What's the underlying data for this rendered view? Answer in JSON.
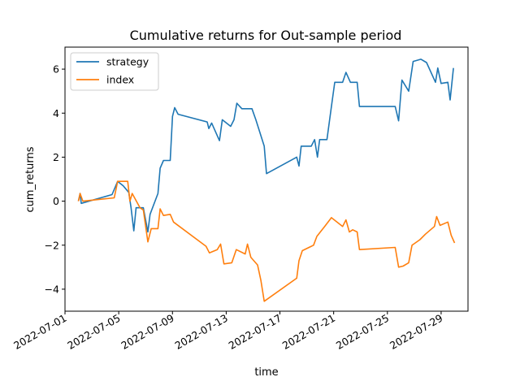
{
  "chart_data": {
    "type": "line",
    "title": "Cumulative returns for Out-sample period",
    "xlabel": "time",
    "ylabel": "cum_returns",
    "xlim": [
      "2022-07-01",
      "2022-07-31"
    ],
    "ylim": [
      -5,
      7
    ],
    "x_ticks": [
      "2022-07-01",
      "2022-07-05",
      "2022-07-09",
      "2022-07-13",
      "2022-07-17",
      "2022-07-21",
      "2022-07-25",
      "2022-07-29"
    ],
    "y_ticks": [
      -4,
      -2,
      0,
      2,
      4,
      6
    ],
    "legend_position": "upper-left",
    "grid": false,
    "series": [
      {
        "name": "strategy",
        "color": "#1f77b4",
        "points": [
          [
            "2022-07-02 00:00",
            0.0
          ],
          [
            "2022-07-02 03:00",
            0.35
          ],
          [
            "2022-07-02 05:00",
            -0.1
          ],
          [
            "2022-07-04 12:00",
            0.3
          ],
          [
            "2022-07-04 22:00",
            0.9
          ],
          [
            "2022-07-05 08:00",
            0.7
          ],
          [
            "2022-07-05 18:00",
            0.4
          ],
          [
            "2022-07-05 22:00",
            -0.3
          ],
          [
            "2022-07-06 03:00",
            -1.35
          ],
          [
            "2022-07-06 07:00",
            -0.3
          ],
          [
            "2022-07-06 20:00",
            -0.3
          ],
          [
            "2022-07-07 04:00",
            -1.4
          ],
          [
            "2022-07-07 08:00",
            -0.6
          ],
          [
            "2022-07-07 22:00",
            0.35
          ],
          [
            "2022-07-08 02:00",
            1.5
          ],
          [
            "2022-07-08 08:00",
            1.85
          ],
          [
            "2022-07-08 20:00",
            1.85
          ],
          [
            "2022-07-09 00:00",
            3.85
          ],
          [
            "2022-07-09 04:00",
            4.25
          ],
          [
            "2022-07-09 10:00",
            3.95
          ],
          [
            "2022-07-11 14:00",
            3.6
          ],
          [
            "2022-07-11 17:00",
            3.3
          ],
          [
            "2022-07-11 22:00",
            3.55
          ],
          [
            "2022-07-12 12:00",
            2.75
          ],
          [
            "2022-07-12 17:00",
            3.7
          ],
          [
            "2022-07-13 08:00",
            3.4
          ],
          [
            "2022-07-13 14:00",
            3.7
          ],
          [
            "2022-07-13 19:00",
            4.45
          ],
          [
            "2022-07-14 04:00",
            4.2
          ],
          [
            "2022-07-14 22:00",
            4.2
          ],
          [
            "2022-07-15 05:00",
            3.7
          ],
          [
            "2022-07-15 20:00",
            2.5
          ],
          [
            "2022-07-16 00:00",
            1.25
          ],
          [
            "2022-07-18 06:00",
            2.0
          ],
          [
            "2022-07-18 10:00",
            1.6
          ],
          [
            "2022-07-18 14:00",
            2.5
          ],
          [
            "2022-07-19 08:00",
            2.5
          ],
          [
            "2022-07-19 14:00",
            2.8
          ],
          [
            "2022-07-19 19:00",
            2.0
          ],
          [
            "2022-07-19 23:00",
            2.8
          ],
          [
            "2022-07-20 12:00",
            2.8
          ],
          [
            "2022-07-20 20:00",
            4.3
          ],
          [
            "2022-07-21 02:00",
            5.4
          ],
          [
            "2022-07-21 16:00",
            5.4
          ],
          [
            "2022-07-21 22:00",
            5.85
          ],
          [
            "2022-07-22 06:00",
            5.4
          ],
          [
            "2022-07-22 18:00",
            5.4
          ],
          [
            "2022-07-22 22:00",
            4.3
          ],
          [
            "2022-07-25 14:00",
            4.3
          ],
          [
            "2022-07-25 20:00",
            3.65
          ],
          [
            "2022-07-26 02:00",
            5.5
          ],
          [
            "2022-07-26 14:00",
            5.0
          ],
          [
            "2022-07-26 22:00",
            6.35
          ],
          [
            "2022-07-27 12:00",
            6.45
          ],
          [
            "2022-07-27 22:00",
            6.3
          ],
          [
            "2022-07-28 14:00",
            5.4
          ],
          [
            "2022-07-28 18:00",
            6.05
          ],
          [
            "2022-07-29 00:00",
            5.35
          ],
          [
            "2022-07-29 12:00",
            5.4
          ],
          [
            "2022-07-29 16:00",
            4.6
          ],
          [
            "2022-07-29 22:00",
            6.05
          ]
        ]
      },
      {
        "name": "index",
        "color": "#ff7f0e",
        "points": [
          [
            "2022-07-02 00:00",
            0.0
          ],
          [
            "2022-07-02 03:00",
            0.35
          ],
          [
            "2022-07-02 08:00",
            0.0
          ],
          [
            "2022-07-04 16:00",
            0.15
          ],
          [
            "2022-07-04 22:00",
            0.9
          ],
          [
            "2022-07-05 16:00",
            0.9
          ],
          [
            "2022-07-05 20:00",
            0.0
          ],
          [
            "2022-07-06 00:00",
            0.35
          ],
          [
            "2022-07-06 14:00",
            -0.3
          ],
          [
            "2022-07-06 20:00",
            -0.4
          ],
          [
            "2022-07-07 04:00",
            -1.85
          ],
          [
            "2022-07-07 10:00",
            -1.25
          ],
          [
            "2022-07-07 22:00",
            -1.25
          ],
          [
            "2022-07-08 02:00",
            -0.35
          ],
          [
            "2022-07-08 08:00",
            -0.65
          ],
          [
            "2022-07-08 20:00",
            -0.6
          ],
          [
            "2022-07-09 02:00",
            -0.95
          ],
          [
            "2022-07-11 12:00",
            -2.05
          ],
          [
            "2022-07-11 18:00",
            -2.35
          ],
          [
            "2022-07-12 08:00",
            -2.2
          ],
          [
            "2022-07-12 14:00",
            -1.95
          ],
          [
            "2022-07-12 20:00",
            -2.85
          ],
          [
            "2022-07-13 10:00",
            -2.8
          ],
          [
            "2022-07-13 18:00",
            -2.2
          ],
          [
            "2022-07-14 10:00",
            -2.4
          ],
          [
            "2022-07-14 14:00",
            -1.95
          ],
          [
            "2022-07-14 20:00",
            -2.55
          ],
          [
            "2022-07-15 08:00",
            -2.9
          ],
          [
            "2022-07-15 14:00",
            -3.6
          ],
          [
            "2022-07-15 20:00",
            -4.55
          ],
          [
            "2022-07-18 06:00",
            -3.5
          ],
          [
            "2022-07-18 10:00",
            -2.7
          ],
          [
            "2022-07-18 16:00",
            -2.25
          ],
          [
            "2022-07-19 12:00",
            -2.0
          ],
          [
            "2022-07-19 18:00",
            -1.6
          ],
          [
            "2022-07-20 08:00",
            -1.15
          ],
          [
            "2022-07-20 20:00",
            -0.75
          ],
          [
            "2022-07-21 16:00",
            -1.15
          ],
          [
            "2022-07-21 22:00",
            -0.85
          ],
          [
            "2022-07-22 04:00",
            -1.4
          ],
          [
            "2022-07-22 10:00",
            -1.3
          ],
          [
            "2022-07-22 18:00",
            -1.4
          ],
          [
            "2022-07-22 22:00",
            -2.2
          ],
          [
            "2022-07-25 14:00",
            -2.1
          ],
          [
            "2022-07-25 20:00",
            -3.0
          ],
          [
            "2022-07-26 04:00",
            -2.95
          ],
          [
            "2022-07-26 14:00",
            -2.8
          ],
          [
            "2022-07-26 20:00",
            -2.0
          ],
          [
            "2022-07-27 10:00",
            -1.75
          ],
          [
            "2022-07-27 20:00",
            -1.5
          ],
          [
            "2022-07-28 12:00",
            -1.15
          ],
          [
            "2022-07-28 16:00",
            -0.7
          ],
          [
            "2022-07-28 22:00",
            -1.1
          ],
          [
            "2022-07-29 12:00",
            -0.95
          ],
          [
            "2022-07-29 18:00",
            -1.55
          ],
          [
            "2022-07-30 00:00",
            -1.9
          ]
        ]
      }
    ]
  }
}
